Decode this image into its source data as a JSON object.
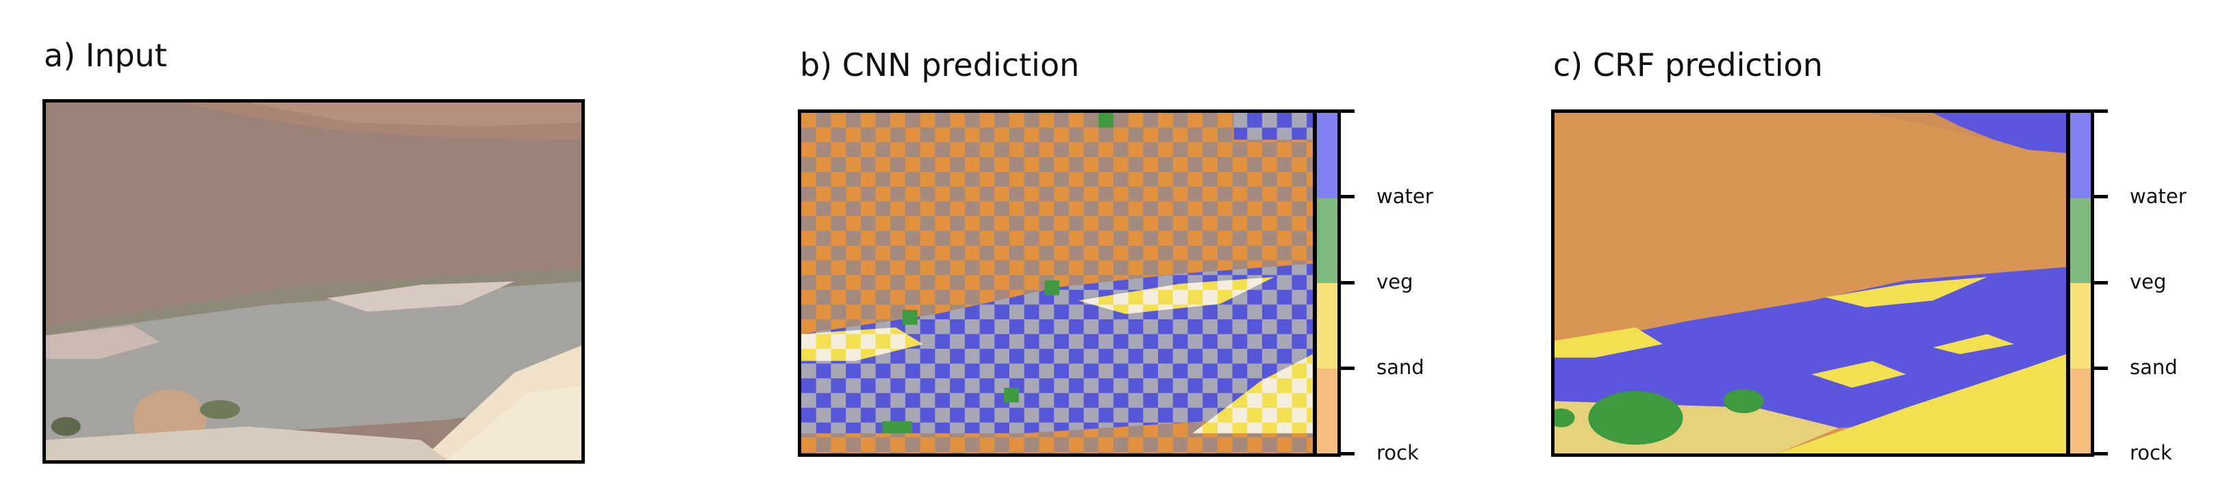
{
  "panels": [
    {
      "title": "a) Input"
    },
    {
      "title": "b) CNN prediction"
    },
    {
      "title": "c) CRF prediction"
    }
  ],
  "legend": {
    "classes": [
      {
        "label": "water",
        "color": "#8080f0"
      },
      {
        "label": "veg",
        "color": "#7fba7f"
      },
      {
        "label": "sand",
        "color": "#f8e27a"
      },
      {
        "label": "rock",
        "color": "#f6bd7e"
      }
    ]
  },
  "colors": {
    "rock_overlay": "#e8943c",
    "water_overlay": "#5050e0",
    "sand_overlay": "#f4e04c",
    "veg_overlay": "#3e9a3e",
    "cliff": "#9a8277",
    "river": "#a4a3a0",
    "beach": "#dccfc8"
  }
}
